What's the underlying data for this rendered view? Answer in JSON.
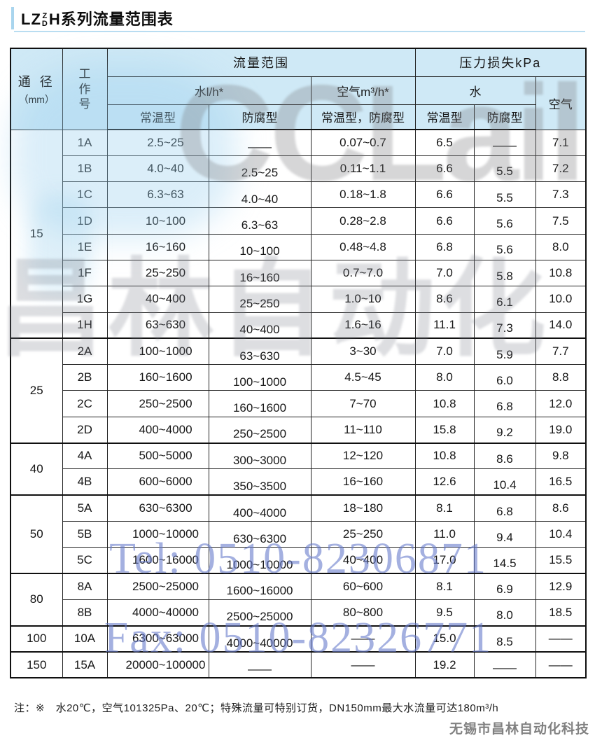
{
  "title": {
    "p1": "LZ",
    "stack_top": "Z",
    "stack_bottom": "D",
    "p2": "H系列流量范围表"
  },
  "table": {
    "headers": {
      "diameter": "通 径",
      "diameter_unit": "（mm）",
      "work_no": "工作号",
      "flow_range": "流量范围",
      "pressure_loss": "压力损失kPa",
      "water_flow": "水l/h*",
      "air_flow": "空气m³/h*",
      "water": "水",
      "air": "空气",
      "normal_type_water": "常温型",
      "anti_type_water": "防腐型",
      "normal_anti_type": "常温型，防腐型",
      "normal_type_ploss": "常温型",
      "anti_type_ploss": "防腐型"
    },
    "groups": [
      {
        "diameter": "15",
        "rows": [
          {
            "code": "1A",
            "water_normal": "2.5~25",
            "water_anti": "——",
            "air": "0.07~0.7",
            "ploss_water_normal": "6.5",
            "ploss_water_anti": "——",
            "ploss_air": "7.1"
          },
          {
            "code": "1B",
            "water_normal": "4.0~40",
            "water_anti": "2.5~25",
            "air": "0.11~1.1",
            "ploss_water_normal": "6.6",
            "ploss_water_anti": "5.5",
            "ploss_air": "7.2"
          },
          {
            "code": "1C",
            "water_normal": "6.3~63",
            "water_anti": "4.0~40",
            "air": "0.18~1.8",
            "ploss_water_normal": "6.6",
            "ploss_water_anti": "5.5",
            "ploss_air": "7.3"
          },
          {
            "code": "1D",
            "water_normal": "10~100",
            "water_anti": "6.3~63",
            "air": "0.28~2.8",
            "ploss_water_normal": "6.6",
            "ploss_water_anti": "5.6",
            "ploss_air": "7.5"
          },
          {
            "code": "1E",
            "water_normal": "16~160",
            "water_anti": "10~100",
            "air": "0.48~4.8",
            "ploss_water_normal": "6.8",
            "ploss_water_anti": "5.6",
            "ploss_air": "8.0"
          },
          {
            "code": "1F",
            "water_normal": "25~250",
            "water_anti": "16~160",
            "air": "0.7~7.0",
            "ploss_water_normal": "7.0",
            "ploss_water_anti": "5.8",
            "ploss_air": "10.8"
          },
          {
            "code": "1G",
            "water_normal": "40~400",
            "water_anti": "25~250",
            "air": "1.0~10",
            "ploss_water_normal": "8.6",
            "ploss_water_anti": "6.1",
            "ploss_air": "10.0"
          },
          {
            "code": "1H",
            "water_normal": "63~630",
            "water_anti": "40~400",
            "air": "1.6~16",
            "ploss_water_normal": "11.1",
            "ploss_water_anti": "7.3",
            "ploss_air": "14.0"
          }
        ]
      },
      {
        "diameter": "25",
        "rows": [
          {
            "code": "2A",
            "water_normal": "100~1000",
            "water_anti": "63~630",
            "air": "3~30",
            "ploss_water_normal": "7.0",
            "ploss_water_anti": "5.9",
            "ploss_air": "7.7"
          },
          {
            "code": "2B",
            "water_normal": "160~1600",
            "water_anti": "100~1000",
            "air": "4.5~45",
            "ploss_water_normal": "8.0",
            "ploss_water_anti": "6.0",
            "ploss_air": "8.8"
          },
          {
            "code": "2C",
            "water_normal": "250~2500",
            "water_anti": "160~1600",
            "air": "7~70",
            "ploss_water_normal": "10.8",
            "ploss_water_anti": "6.8",
            "ploss_air": "12.0"
          },
          {
            "code": "2D",
            "water_normal": "400~4000",
            "water_anti": "250~2500",
            "air": "11~110",
            "ploss_water_normal": "15.8",
            "ploss_water_anti": "9.2",
            "ploss_air": "19.0"
          }
        ]
      },
      {
        "diameter": "40",
        "rows": [
          {
            "code": "4A",
            "water_normal": "500~5000",
            "water_anti": "300~3000",
            "air": "12~120",
            "ploss_water_normal": "10.8",
            "ploss_water_anti": "8.6",
            "ploss_air": "9.8"
          },
          {
            "code": "4B",
            "water_normal": "600~6000",
            "water_anti": "350~3500",
            "air": "16~160",
            "ploss_water_normal": "12.6",
            "ploss_water_anti": "10.4",
            "ploss_air": "16.5"
          }
        ]
      },
      {
        "diameter": "50",
        "rows": [
          {
            "code": "5A",
            "water_normal": "630~6300",
            "water_anti": "400~4000",
            "air": "18~180",
            "ploss_water_normal": "8.1",
            "ploss_water_anti": "6.8",
            "ploss_air": "8.6"
          },
          {
            "code": "5B",
            "water_normal": "1000~10000",
            "water_anti": "630~6300",
            "air": "25~250",
            "ploss_water_normal": "11.0",
            "ploss_water_anti": "9.4",
            "ploss_air": "10.4"
          },
          {
            "code": "5C",
            "water_normal": "1600~16000",
            "water_anti": "1000~10000",
            "air": "40~400",
            "ploss_water_normal": "17.0",
            "ploss_water_anti": "14.5",
            "ploss_air": "15.5"
          }
        ]
      },
      {
        "diameter": "80",
        "rows": [
          {
            "code": "8A",
            "water_normal": "2500~25000",
            "water_anti": "1600~16000",
            "air": "60~600",
            "ploss_water_normal": "8.1",
            "ploss_water_anti": "6.9",
            "ploss_air": "12.9"
          },
          {
            "code": "8B",
            "water_normal": "4000~40000",
            "water_anti": "2500~25000",
            "air": "80~800",
            "ploss_water_normal": "9.5",
            "ploss_water_anti": "8.0",
            "ploss_air": "18.5"
          }
        ]
      },
      {
        "diameter": "100",
        "rows": [
          {
            "code": "10A",
            "water_normal": "6300~63000",
            "water_anti": "4000~40000",
            "air": "——",
            "ploss_water_normal": "15.0",
            "ploss_water_anti": "8.5",
            "ploss_air": "——"
          }
        ]
      },
      {
        "diameter": "150",
        "rows": [
          {
            "code": "15A",
            "water_normal": "20000~100000",
            "water_anti": "——",
            "air": "——",
            "ploss_water_normal": "19.2",
            "ploss_water_anti": "——",
            "ploss_air": "——"
          }
        ]
      }
    ]
  },
  "footnote": "注：※　水20℃，空气101325Pa、20℃；特殊流量可特别订货，DN150mm最大水流量可达180m³/h",
  "watermarks": {
    "logo": "CCLail",
    "cn": "昌林自动化",
    "tel": "Tel: 0510-82306871",
    "fax": "Fax: 0510-82326771",
    "company": "无锡市昌林自动化科技"
  },
  "colors": {
    "header_bg": "#cfe9f6",
    "accent_blue": "#a9d5ee",
    "watermark_blue": "#687cca",
    "border": "#101010"
  }
}
